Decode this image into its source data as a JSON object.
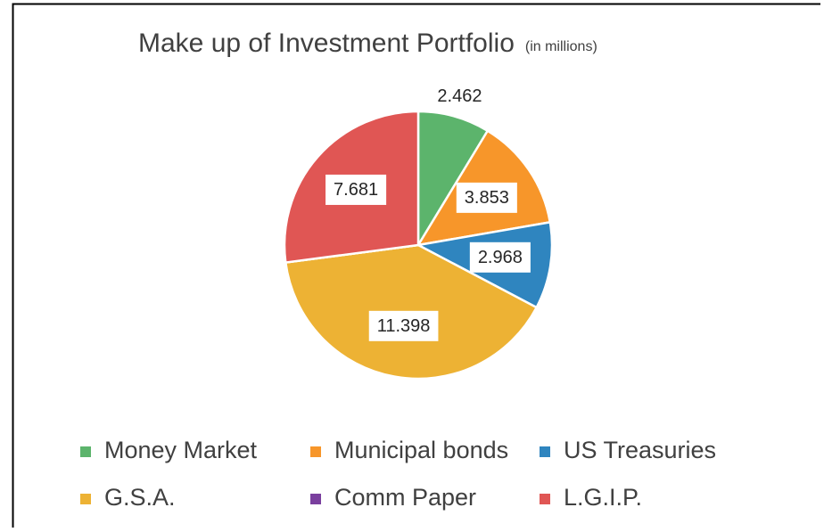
{
  "chart_data": {
    "type": "pie",
    "title": "Make up of Investment Portfolio",
    "subtitle": "(in millions)",
    "categories": [
      "Money Market",
      "Municipal bonds",
      "US Treasuries",
      "G.S.A.",
      "Comm Paper",
      "L.G.I.P."
    ],
    "values": [
      2.462,
      3.853,
      2.968,
      11.398,
      0,
      7.681
    ],
    "colors": [
      "#5cb46c",
      "#f7962a",
      "#2f85bf",
      "#edb234",
      "#7a3f9e",
      "#e05654"
    ],
    "legend": "bottom"
  }
}
